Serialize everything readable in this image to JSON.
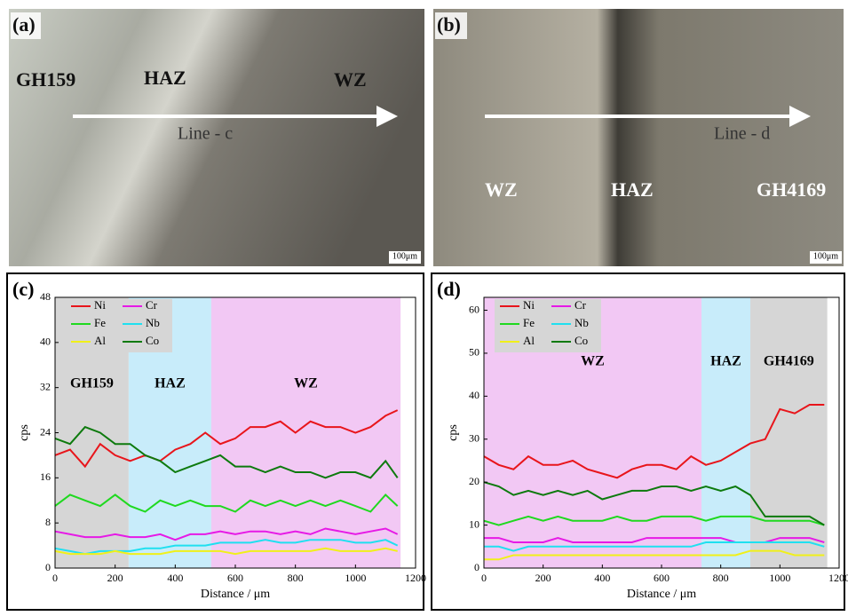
{
  "images": [
    {
      "panel": "(a)",
      "labels": [
        "GH159",
        "HAZ",
        "WZ"
      ],
      "line_label": "Line - c",
      "scale": "100μm"
    },
    {
      "panel": "(b)",
      "labels": [
        "WZ",
        "HAZ",
        "GH4169"
      ],
      "line_label": "Line - d",
      "scale": "100μm"
    }
  ],
  "chart_data": [
    {
      "type": "line",
      "panel": "(c)",
      "x_label": "Distance / μm",
      "y_label": "cps",
      "xlim": [
        0,
        1200
      ],
      "xticks": [
        0,
        200,
        400,
        600,
        800,
        1000,
        1200
      ],
      "ylim": [
        0,
        48
      ],
      "yticks": [
        0,
        8,
        16,
        24,
        32,
        40,
        48
      ],
      "regions": [
        {
          "label": "GH159",
          "start": 0,
          "end": 245,
          "color": "#d6d6d6"
        },
        {
          "label": "HAZ",
          "start": 245,
          "end": 520,
          "color": "#c8ecfa"
        },
        {
          "label": "WZ",
          "start": 520,
          "end": 1150,
          "color": "#f2c8f4"
        }
      ],
      "x": [
        0,
        50,
        100,
        150,
        200,
        250,
        300,
        350,
        400,
        450,
        500,
        550,
        600,
        650,
        700,
        750,
        800,
        850,
        900,
        950,
        1000,
        1050,
        1100,
        1140
      ],
      "series": [
        {
          "name": "Ni",
          "color": "#e8151b",
          "values": [
            20,
            21,
            18,
            22,
            20,
            19,
            20,
            19,
            21,
            22,
            24,
            22,
            23,
            25,
            25,
            26,
            24,
            26,
            25,
            25,
            24,
            25,
            27,
            28
          ]
        },
        {
          "name": "Cr",
          "color": "#e61ae6",
          "values": [
            6.5,
            6,
            5.5,
            5.5,
            6,
            5.5,
            5.5,
            6,
            5,
            6,
            6,
            6.5,
            6,
            6.5,
            6.5,
            6,
            6.5,
            6,
            7,
            6.5,
            6,
            6.5,
            7,
            6
          ]
        },
        {
          "name": "Fe",
          "color": "#1fd91f",
          "values": [
            11,
            13,
            12,
            11,
            13,
            11,
            10,
            12,
            11,
            12,
            11,
            11,
            10,
            12,
            11,
            12,
            11,
            12,
            11,
            12,
            11,
            10,
            13,
            11
          ]
        },
        {
          "name": "Nb",
          "color": "#1fe0f0",
          "values": [
            3.5,
            3,
            2.5,
            3,
            3,
            3,
            3.5,
            3.5,
            4,
            4,
            4,
            4.5,
            4.5,
            4.5,
            5,
            4.5,
            4.5,
            5,
            5,
            5,
            4.5,
            4.5,
            5,
            4
          ]
        },
        {
          "name": "Al",
          "color": "#f0f019",
          "values": [
            3,
            2.5,
            2.5,
            2.5,
            3,
            2.5,
            2.5,
            2.5,
            3,
            3,
            3,
            3,
            2.5,
            3,
            3,
            3,
            3,
            3,
            3.5,
            3,
            3,
            3,
            3.5,
            3
          ]
        },
        {
          "name": "Co",
          "color": "#0d7a0d",
          "values": [
            23,
            22,
            25,
            24,
            22,
            22,
            20,
            19,
            17,
            18,
            19,
            20,
            18,
            18,
            17,
            18,
            17,
            17,
            16,
            17,
            17,
            16,
            19,
            16
          ]
        }
      ]
    },
    {
      "type": "line",
      "panel": "(d)",
      "x_label": "Distance / μm",
      "y_label": "cps",
      "xlim": [
        0,
        1200
      ],
      "xticks": [
        0,
        200,
        400,
        600,
        800,
        1000,
        1200
      ],
      "ylim": [
        0,
        63
      ],
      "yticks": [
        0,
        10,
        20,
        30,
        40,
        50,
        60
      ],
      "regions": [
        {
          "label": "WZ",
          "start": 0,
          "end": 735,
          "color": "#f2c8f4"
        },
        {
          "label": "HAZ",
          "start": 735,
          "end": 900,
          "color": "#c8ecfa"
        },
        {
          "label": "GH4169",
          "start": 900,
          "end": 1160,
          "color": "#d6d6d6"
        }
      ],
      "x": [
        0,
        50,
        100,
        150,
        200,
        250,
        300,
        350,
        400,
        450,
        500,
        550,
        600,
        650,
        700,
        750,
        800,
        850,
        900,
        950,
        1000,
        1050,
        1100,
        1150
      ],
      "series": [
        {
          "name": "Ni",
          "color": "#e8151b",
          "values": [
            26,
            24,
            23,
            26,
            24,
            24,
            25,
            23,
            22,
            21,
            23,
            24,
            24,
            23,
            26,
            24,
            25,
            27,
            29,
            30,
            37,
            36,
            38,
            38
          ]
        },
        {
          "name": "Cr",
          "color": "#e61ae6",
          "values": [
            7,
            7,
            6,
            6,
            6,
            7,
            6,
            6,
            6,
            6,
            6,
            7,
            7,
            7,
            7,
            7,
            7,
            6,
            6,
            6,
            7,
            7,
            7,
            6
          ]
        },
        {
          "name": "Fe",
          "color": "#1fd91f",
          "values": [
            11,
            10,
            11,
            12,
            11,
            12,
            11,
            11,
            11,
            12,
            11,
            11,
            12,
            12,
            12,
            11,
            12,
            12,
            12,
            11,
            11,
            11,
            11,
            10
          ]
        },
        {
          "name": "Nb",
          "color": "#1fe0f0",
          "values": [
            5,
            5,
            4,
            5,
            5,
            5,
            5,
            5,
            5,
            5,
            5,
            5,
            5,
            5,
            5,
            6,
            6,
            6,
            6,
            6,
            6,
            6,
            6,
            5
          ]
        },
        {
          "name": "Al",
          "color": "#f0f019",
          "values": [
            2,
            2,
            3,
            3,
            3,
            3,
            3,
            3,
            3,
            3,
            3,
            3,
            3,
            3,
            3,
            3,
            3,
            3,
            4,
            4,
            4,
            3,
            3,
            3
          ]
        },
        {
          "name": "Co",
          "color": "#0d7a0d",
          "values": [
            20,
            19,
            17,
            18,
            17,
            18,
            17,
            18,
            16,
            17,
            18,
            18,
            19,
            19,
            18,
            19,
            18,
            19,
            17,
            12,
            12,
            12,
            12,
            10
          ]
        }
      ]
    }
  ]
}
